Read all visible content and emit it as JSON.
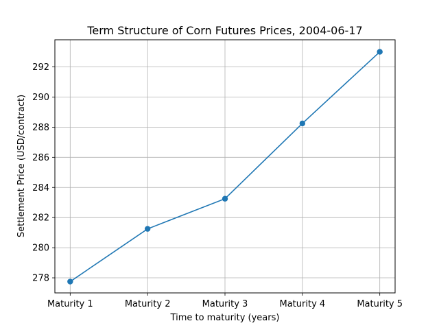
{
  "chart_data": {
    "type": "line",
    "title": "Term Structure of Corn Futures Prices, 2004-06-17",
    "xlabel": "Time to maturity (years)",
    "ylabel": "Settlement Price (USD/contract)",
    "categories": [
      "Maturity 1",
      "Maturity 2",
      "Maturity 3",
      "Maturity 4",
      "Maturity 5"
    ],
    "series": [
      {
        "values": [
          277.75,
          281.25,
          283.25,
          288.25,
          293.0
        ]
      }
    ],
    "yticks": [
      278,
      280,
      282,
      284,
      286,
      288,
      290,
      292
    ],
    "ylim": [
      277.0,
      293.8
    ],
    "grid": true,
    "legend": "none",
    "colors": {
      "line": "#1f77b4",
      "grid": "#b0b0b0",
      "axes": "#000000"
    }
  }
}
